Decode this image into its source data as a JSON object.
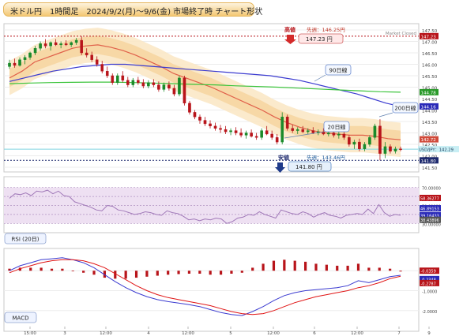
{
  "title": "米ドル円　1時間足　2024/9/2(月)～9/6(金) 市場終了時 チャート形状",
  "market_status": "Market Closed",
  "colors": {
    "up": "#1a8a2a",
    "down": "#b8141a",
    "ma20": "#e0604a",
    "ma90": "#3b3bd0",
    "ma200": "#3cc43c",
    "band": "#f6dcae",
    "rsi": "#a078b8",
    "rsi_band": "#eee0f2",
    "macd": "#3b3bd0",
    "signal": "#e01414",
    "hist": "#b8141a"
  },
  "price_scale_labels": [
    "147.50",
    "147.00",
    "146.50",
    "146.00",
    "145.50",
    "145.00",
    "144.50",
    "144.00",
    "143.50",
    "143.00",
    "142.50",
    "142.00",
    "141.50"
  ],
  "rsi_scale_labels": [
    "70.00000",
    "60.00000",
    "50.00000",
    "40.00000",
    "30.00000"
  ],
  "macd_scale_labels": [
    "0.0000",
    "-1.0000",
    "-2.0000"
  ],
  "x_labels": [
    "15:00",
    "3",
    "12:00",
    "4",
    "12:00",
    "5",
    "12:00",
    "6",
    "12:00",
    "7",
    "9"
  ],
  "legend": {
    "ma20": "20日線",
    "ma90": "90日線",
    "ma200": "200日線"
  },
  "annotations": {
    "high_marker": "高値",
    "high_value": "147.23 円",
    "first_high": "先週：146.25円",
    "low_marker": "安値",
    "low_value": "141.80 円",
    "first_low": "先週：143.46円"
  },
  "price_tags": {
    "high": "147.23",
    "ma200": "144.78",
    "ma90": "144.16",
    "ma20": "142.72",
    "close": "USD/JPY：142.29",
    "low": "141.80"
  },
  "rsi_tags": {
    "rsi_hi": "58.36277",
    "rsi_mid": "46.89153",
    "rsi_lo1": "39.16433",
    "rsi_lo2": "38.43896"
  },
  "macd_tags": {
    "hist": "-0.0359",
    "macd": "-0.2348",
    "signal": "-0.2787"
  },
  "panel_labels": {
    "rsi": "RSI (20日)",
    "macd": "MACD"
  },
  "chart_data": [
    {
      "type": "candlestick",
      "title": "米ドル円　1時間足　2024/9/2(月)～9/6(金) 市場終了時 チャート形状",
      "ylim": [
        141.5,
        147.5
      ],
      "candles": [
        {
          "o": 145.9,
          "h": 146.2,
          "l": 145.8,
          "c": 146.05
        },
        {
          "o": 146.05,
          "h": 146.25,
          "l": 145.85,
          "c": 145.95
        },
        {
          "o": 145.95,
          "h": 146.3,
          "l": 145.9,
          "c": 146.2
        },
        {
          "o": 146.2,
          "h": 146.4,
          "l": 146.0,
          "c": 146.3
        },
        {
          "o": 146.3,
          "h": 146.55,
          "l": 146.2,
          "c": 146.5
        },
        {
          "o": 146.5,
          "h": 146.8,
          "l": 146.4,
          "c": 146.7
        },
        {
          "o": 146.7,
          "h": 147.0,
          "l": 146.6,
          "c": 146.9
        },
        {
          "o": 146.9,
          "h": 147.1,
          "l": 146.7,
          "c": 146.8
        },
        {
          "o": 146.8,
          "h": 147.0,
          "l": 146.6,
          "c": 146.95
        },
        {
          "o": 146.95,
          "h": 147.1,
          "l": 146.8,
          "c": 146.85
        },
        {
          "o": 146.85,
          "h": 147.0,
          "l": 146.7,
          "c": 146.9
        },
        {
          "o": 146.9,
          "h": 147.05,
          "l": 146.8,
          "c": 146.85
        },
        {
          "o": 146.85,
          "h": 147.0,
          "l": 146.75,
          "c": 146.95
        },
        {
          "o": 146.95,
          "h": 147.15,
          "l": 146.85,
          "c": 147.05
        },
        {
          "o": 147.05,
          "h": 147.23,
          "l": 146.4,
          "c": 146.5
        },
        {
          "o": 146.5,
          "h": 146.7,
          "l": 146.3,
          "c": 146.4
        },
        {
          "o": 146.4,
          "h": 146.55,
          "l": 146.1,
          "c": 146.2
        },
        {
          "o": 146.2,
          "h": 146.35,
          "l": 145.9,
          "c": 146.0
        },
        {
          "o": 146.0,
          "h": 146.15,
          "l": 145.6,
          "c": 145.7
        },
        {
          "o": 145.7,
          "h": 145.9,
          "l": 145.4,
          "c": 145.5
        },
        {
          "o": 145.5,
          "h": 145.6,
          "l": 145.1,
          "c": 145.2
        },
        {
          "o": 145.2,
          "h": 145.6,
          "l": 145.1,
          "c": 145.5
        },
        {
          "o": 145.5,
          "h": 145.7,
          "l": 145.2,
          "c": 145.3
        },
        {
          "o": 145.3,
          "h": 145.45,
          "l": 145.0,
          "c": 145.1
        },
        {
          "o": 145.1,
          "h": 145.4,
          "l": 145.0,
          "c": 145.3
        },
        {
          "o": 145.3,
          "h": 145.45,
          "l": 145.1,
          "c": 145.2
        },
        {
          "o": 145.2,
          "h": 145.35,
          "l": 144.95,
          "c": 145.05
        },
        {
          "o": 145.05,
          "h": 145.3,
          "l": 144.95,
          "c": 145.2
        },
        {
          "o": 145.2,
          "h": 145.35,
          "l": 145.0,
          "c": 145.1
        },
        {
          "o": 145.1,
          "h": 145.25,
          "l": 144.8,
          "c": 144.9
        },
        {
          "o": 144.9,
          "h": 145.2,
          "l": 144.8,
          "c": 145.1
        },
        {
          "o": 145.1,
          "h": 145.25,
          "l": 144.85,
          "c": 144.95
        },
        {
          "o": 144.95,
          "h": 145.1,
          "l": 144.6,
          "c": 144.7
        },
        {
          "o": 144.7,
          "h": 145.5,
          "l": 144.6,
          "c": 145.4
        },
        {
          "o": 145.4,
          "h": 145.5,
          "l": 144.2,
          "c": 144.3
        },
        {
          "o": 144.3,
          "h": 144.4,
          "l": 143.8,
          "c": 143.9
        },
        {
          "o": 143.9,
          "h": 144.0,
          "l": 143.6,
          "c": 143.7
        },
        {
          "o": 143.7,
          "h": 143.8,
          "l": 143.4,
          "c": 143.55
        },
        {
          "o": 143.55,
          "h": 143.7,
          "l": 143.3,
          "c": 143.4
        },
        {
          "o": 143.4,
          "h": 143.55,
          "l": 143.2,
          "c": 143.3
        },
        {
          "o": 143.3,
          "h": 143.45,
          "l": 143.1,
          "c": 143.2
        },
        {
          "o": 143.2,
          "h": 143.35,
          "l": 143.0,
          "c": 143.15
        },
        {
          "o": 143.15,
          "h": 143.3,
          "l": 142.95,
          "c": 143.05
        },
        {
          "o": 143.05,
          "h": 143.2,
          "l": 142.9,
          "c": 143.1
        },
        {
          "o": 143.1,
          "h": 143.25,
          "l": 142.9,
          "c": 143.0
        },
        {
          "o": 143.0,
          "h": 143.2,
          "l": 142.8,
          "c": 142.9
        },
        {
          "o": 142.9,
          "h": 143.1,
          "l": 142.75,
          "c": 143.0
        },
        {
          "o": 143.0,
          "h": 143.15,
          "l": 142.8,
          "c": 142.85
        },
        {
          "o": 142.85,
          "h": 143.0,
          "l": 142.7,
          "c": 142.8
        },
        {
          "o": 142.8,
          "h": 143.2,
          "l": 142.7,
          "c": 143.1
        },
        {
          "o": 143.1,
          "h": 143.3,
          "l": 142.9,
          "c": 142.95
        },
        {
          "o": 142.95,
          "h": 143.1,
          "l": 142.7,
          "c": 142.8
        },
        {
          "o": 142.8,
          "h": 142.95,
          "l": 142.5,
          "c": 142.6
        },
        {
          "o": 142.6,
          "h": 143.9,
          "l": 142.5,
          "c": 143.7
        },
        {
          "o": 143.7,
          "h": 143.8,
          "l": 143.1,
          "c": 143.2
        },
        {
          "o": 143.2,
          "h": 143.35,
          "l": 143.0,
          "c": 143.1
        },
        {
          "o": 143.1,
          "h": 143.25,
          "l": 142.95,
          "c": 143.15
        },
        {
          "o": 143.15,
          "h": 143.3,
          "l": 143.0,
          "c": 143.05
        },
        {
          "o": 143.05,
          "h": 143.2,
          "l": 142.95,
          "c": 143.1
        },
        {
          "o": 143.1,
          "h": 143.25,
          "l": 142.95,
          "c": 143.0
        },
        {
          "o": 143.0,
          "h": 143.15,
          "l": 142.9,
          "c": 143.05
        },
        {
          "o": 143.05,
          "h": 143.2,
          "l": 142.9,
          "c": 142.95
        },
        {
          "o": 142.95,
          "h": 143.1,
          "l": 142.85,
          "c": 143.0
        },
        {
          "o": 143.0,
          "h": 143.1,
          "l": 142.8,
          "c": 142.9
        },
        {
          "o": 142.9,
          "h": 143.05,
          "l": 142.75,
          "c": 142.95
        },
        {
          "o": 142.95,
          "h": 143.05,
          "l": 142.7,
          "c": 142.8
        },
        {
          "o": 142.8,
          "h": 142.9,
          "l": 142.4,
          "c": 142.5
        },
        {
          "o": 142.5,
          "h": 142.7,
          "l": 142.3,
          "c": 142.6
        },
        {
          "o": 142.6,
          "h": 142.75,
          "l": 142.2,
          "c": 142.3
        },
        {
          "o": 142.3,
          "h": 142.6,
          "l": 142.2,
          "c": 142.5
        },
        {
          "o": 142.5,
          "h": 142.9,
          "l": 142.4,
          "c": 142.8
        },
        {
          "o": 142.8,
          "h": 143.4,
          "l": 142.7,
          "c": 143.3
        },
        {
          "o": 143.3,
          "h": 143.6,
          "l": 141.8,
          "c": 142.1
        },
        {
          "o": 142.1,
          "h": 142.6,
          "l": 141.9,
          "c": 142.4
        },
        {
          "o": 142.4,
          "h": 142.5,
          "l": 142.1,
          "c": 142.2
        },
        {
          "o": 142.2,
          "h": 142.4,
          "l": 142.1,
          "c": 142.3
        },
        {
          "o": 142.3,
          "h": 142.4,
          "l": 142.2,
          "c": 142.29
        }
      ],
      "series": [
        {
          "name": "20日線",
          "values": [
            145.4,
            145.7,
            146.1,
            146.3,
            146.5,
            146.7,
            146.8,
            146.85,
            146.75,
            146.6,
            146.4,
            146.15,
            145.9,
            145.6,
            145.4,
            145.2,
            145.0,
            144.75,
            144.5,
            144.25,
            144.0,
            143.7,
            143.45,
            143.25,
            143.1,
            143.0,
            142.95,
            142.9,
            142.9,
            142.85,
            142.75,
            142.7
          ]
        },
        {
          "name": "90日線",
          "values": [
            145.25,
            145.4,
            145.55,
            145.7,
            145.8,
            145.9,
            145.95,
            146.0,
            146.0,
            145.95,
            145.9,
            145.85,
            145.8,
            145.75,
            145.7,
            145.65,
            145.6,
            145.55,
            145.5,
            145.4,
            145.3,
            145.15,
            145.0,
            144.85,
            144.7,
            144.5,
            144.3,
            144.16
          ]
        },
        {
          "name": "200日線",
          "values": [
            145.15,
            145.18,
            145.2,
            145.21,
            145.22,
            145.22,
            145.2,
            145.18,
            145.15,
            145.12,
            145.1,
            145.06,
            145.03,
            145.0,
            144.96,
            144.92,
            144.88,
            144.84,
            144.8,
            144.78
          ]
        }
      ],
      "annotations": {
        "high": 147.23,
        "previous_high": 146.25,
        "low": 141.8,
        "previous_low": 143.46,
        "close": 142.29
      }
    },
    {
      "type": "line",
      "title": "RSI (20日)",
      "ylim": [
        25,
        75
      ],
      "reference_lines": [
        70,
        60,
        50,
        40,
        30
      ],
      "series": [
        {
          "name": "RSI (20日)",
          "values": [
            58,
            63,
            62,
            64,
            61,
            66,
            65,
            67,
            63,
            66,
            61,
            60,
            54,
            52,
            50,
            48,
            45,
            44,
            50,
            49,
            45,
            44,
            42,
            40,
            41,
            43,
            42,
            40,
            39,
            44,
            42,
            41,
            38,
            34,
            35,
            33,
            35,
            34,
            36,
            35,
            30,
            32,
            36,
            37,
            40,
            39,
            43,
            40,
            38,
            36,
            45,
            43,
            41,
            40,
            43,
            41,
            37,
            40,
            42,
            39,
            38,
            36,
            39,
            40,
            41,
            40,
            46,
            41,
            51,
            42,
            38,
            40,
            39
          ]
        }
      ]
    },
    {
      "type": "line",
      "title": "MACD",
      "ylim": [
        -2.8,
        0.8
      ],
      "series": [
        {
          "name": "MACD",
          "values": [
            0.0,
            0.25,
            0.4,
            0.55,
            0.6,
            0.65,
            0.55,
            0.4,
            0.15,
            -0.2,
            -0.55,
            -0.85,
            -1.1,
            -1.3,
            -1.45,
            -1.55,
            -1.62,
            -1.7,
            -1.8,
            -1.95,
            -2.1,
            -2.2,
            -2.25,
            -2.05,
            -1.8,
            -1.5,
            -1.25,
            -1.1,
            -1.0,
            -0.95,
            -0.9,
            -0.85,
            -0.75,
            -0.5,
            -0.6,
            -0.45,
            -0.3,
            -0.23
          ]
        },
        {
          "name": "Signal",
          "values": [
            -0.1,
            0.1,
            0.25,
            0.4,
            0.5,
            0.55,
            0.55,
            0.5,
            0.35,
            0.15,
            -0.15,
            -0.45,
            -0.75,
            -1.0,
            -1.2,
            -1.35,
            -1.45,
            -1.55,
            -1.65,
            -1.75,
            -1.9,
            -2.05,
            -2.15,
            -2.2,
            -2.15,
            -2.0,
            -1.8,
            -1.6,
            -1.45,
            -1.3,
            -1.2,
            -1.1,
            -1.0,
            -0.85,
            -0.75,
            -0.6,
            -0.4,
            -0.28
          ]
        },
        {
          "name": "Histogram",
          "values": [
            0.1,
            0.15,
            0.15,
            0.15,
            0.1,
            0.1,
            0.0,
            -0.1,
            -0.2,
            -0.35,
            -0.4,
            -0.4,
            -0.35,
            -0.3,
            -0.25,
            -0.2,
            -0.17,
            -0.15,
            -0.15,
            -0.2,
            -0.2,
            -0.15,
            -0.1,
            0.15,
            0.35,
            0.5,
            0.55,
            0.5,
            0.45,
            0.35,
            0.3,
            0.25,
            0.25,
            0.35,
            0.15,
            0.15,
            0.1,
            -0.04
          ]
        }
      ]
    }
  ]
}
